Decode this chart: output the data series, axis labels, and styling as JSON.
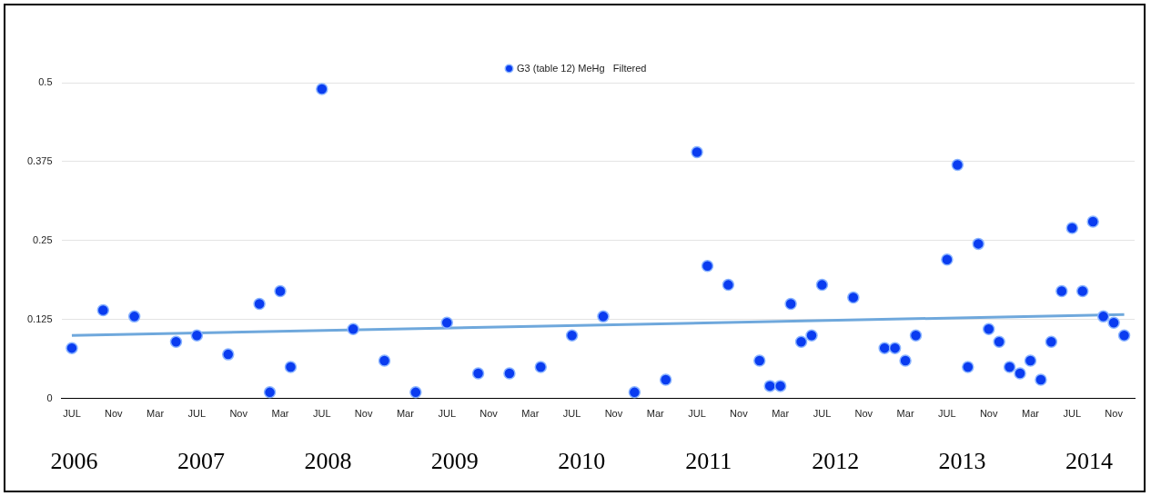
{
  "chart_data": {
    "type": "scatter",
    "marker": "circle",
    "legend": "top",
    "grid": "y",
    "x": [
      "2006-07",
      "2006-10",
      "2007-01",
      "2007-05",
      "2007-07",
      "2007-10",
      "2008-01",
      "2008-02",
      "2008-03",
      "2008-04",
      "2008-07",
      "2008-10",
      "2009-01",
      "2009-04",
      "2009-07",
      "2009-10",
      "2010-01",
      "2010-04",
      "2010-07",
      "2010-10",
      "2011-01",
      "2011-04",
      "2011-07",
      "2011-08",
      "2011-10",
      "2012-01",
      "2012-02",
      "2012-03",
      "2012-04",
      "2012-05",
      "2012-06",
      "2012-07",
      "2012-10",
      "2013-01",
      "2013-02",
      "2013-03",
      "2013-04",
      "2013-07",
      "2013-08",
      "2013-09",
      "2013-10",
      "2013-11",
      "2013-12",
      "2014-01",
      "2014-02",
      "2014-03",
      "2014-04",
      "2014-05",
      "2014-06",
      "2014-07",
      "2014-08",
      "2014-09",
      "2014-10",
      "2014-11",
      "2014-12"
    ],
    "series": [
      {
        "name": "G3 (table 12) MeHg   Filtered",
        "color": "#0a3cf0",
        "values": [
          0.08,
          0.14,
          0.13,
          0.09,
          0.1,
          0.07,
          0.15,
          0.01,
          0.17,
          0.05,
          0.49,
          0.11,
          0.06,
          0.01,
          0.12,
          0.04,
          0.04,
          0.05,
          0.1,
          0.13,
          0.01,
          0.03,
          0.39,
          0.21,
          0.18,
          0.06,
          0.02,
          0.02,
          0.15,
          0.09,
          0.1,
          0.18,
          0.16,
          0.08,
          0.08,
          0.06,
          0.1,
          0.22,
          0.37,
          0.05,
          0.245,
          0.11,
          0.09,
          0.05,
          0.04,
          0.06,
          0.03,
          0.09,
          0.17,
          0.27,
          0.17,
          0.28,
          0.13,
          0.12,
          0.1
        ]
      },
      {
        "type": "line",
        "marker": "none",
        "color": "#6fa8dc",
        "x": [
          "2006-07",
          "2014-12"
        ],
        "values": [
          0.1,
          0.133
        ]
      }
    ],
    "xlim": [
      "2006-06",
      "2015-01"
    ],
    "xticks": [
      {
        "value": "2006-07",
        "label": "JUL"
      },
      {
        "value": "2006-11",
        "label": "Nov"
      },
      {
        "value": "2007-03",
        "label": "Mar"
      },
      {
        "value": "2007-07",
        "label": "JUL"
      },
      {
        "value": "2007-11",
        "label": "Nov"
      },
      {
        "value": "2008-03",
        "label": "Mar"
      },
      {
        "value": "2008-07",
        "label": "JUL"
      },
      {
        "value": "2008-11",
        "label": "Nov"
      },
      {
        "value": "2009-03",
        "label": "Mar"
      },
      {
        "value": "2009-07",
        "label": "JUL"
      },
      {
        "value": "2009-11",
        "label": "Nov"
      },
      {
        "value": "2010-03",
        "label": "Mar"
      },
      {
        "value": "2010-07",
        "label": "JUL"
      },
      {
        "value": "2010-11",
        "label": "Nov"
      },
      {
        "value": "2011-03",
        "label": "Mar"
      },
      {
        "value": "2011-07",
        "label": "JUL"
      },
      {
        "value": "2011-11",
        "label": "Nov"
      },
      {
        "value": "2012-03",
        "label": "Mar"
      },
      {
        "value": "2012-07",
        "label": "JUL"
      },
      {
        "value": "2012-11",
        "label": "Nov"
      },
      {
        "value": "2013-03",
        "label": "Mar"
      },
      {
        "value": "2013-07",
        "label": "JUL"
      },
      {
        "value": "2013-11",
        "label": "Nov"
      },
      {
        "value": "2014-03",
        "label": "Mar"
      },
      {
        "value": "2014-07",
        "label": "JUL"
      },
      {
        "value": "2014-11",
        "label": "Nov"
      }
    ],
    "ylim": [
      0,
      0.5
    ],
    "yticks": [
      0,
      0.125,
      0.25,
      0.375,
      0.5
    ],
    "annotations": [
      "2006",
      "2007",
      "2008",
      "2009",
      "2010",
      "2011",
      "2012",
      "2013",
      "2014"
    ]
  }
}
